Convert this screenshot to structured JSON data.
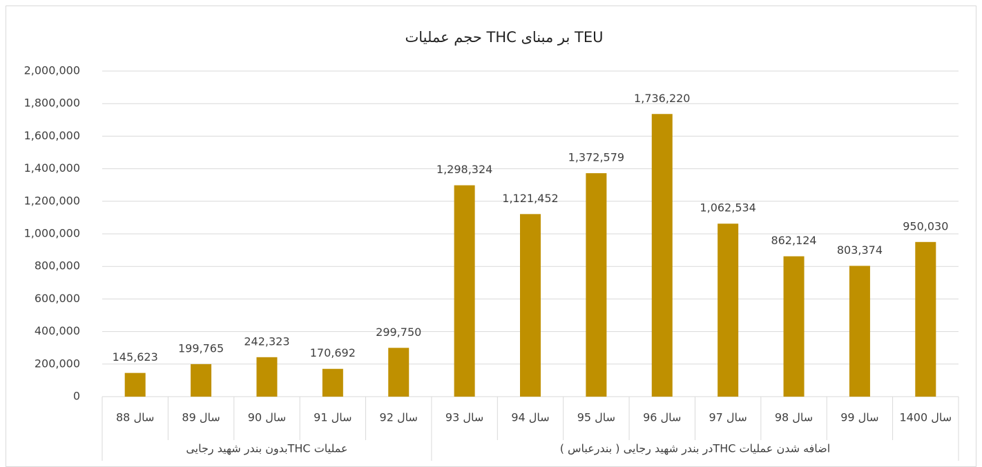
{
  "chart_data": {
    "type": "bar",
    "title": "حجم عملیات THC بر مبنای TEU",
    "color": "#bf9000",
    "groups": [
      {
        "name": "عملیات  THCبدون بندر شهید رجایی",
        "categories": [
          "سال 88",
          "سال 89",
          "سال 90",
          "سال 91",
          "سال 92"
        ],
        "values": [
          145623,
          199765,
          242323,
          170692,
          299750
        ],
        "value_labels": [
          "145,623",
          "199,765",
          "242,323",
          "170,692",
          "299,750"
        ]
      },
      {
        "name": "اضافه شدن عملیات  THCدر بندر شهید رجایی ( بندرعباس )",
        "categories": [
          "سال 93",
          "سال 94",
          "سال 95",
          "سال 96",
          "سال 97",
          "سال 98",
          "سال 99",
          "سال 1400"
        ],
        "values": [
          1298324,
          1121452,
          1372579,
          1736220,
          1062534,
          862124,
          803374,
          950030
        ],
        "value_labels": [
          "1,298,324",
          "1,121,452",
          "1,372,579",
          "1,736,220",
          "1,062,534",
          "862,124",
          "803,374",
          "950,030"
        ]
      }
    ],
    "ylim": [
      0,
      2000000
    ],
    "yticks": [
      0,
      {
        "value": 200000,
        "label": "200,000"
      },
      {
        "value": 400000,
        "label": "400,000"
      },
      {
        "value": 600000,
        "label": "600,000"
      },
      {
        "value": 800000,
        "label": "800,000"
      },
      {
        "value": 1000000,
        "label": "1,000,000"
      },
      {
        "value": 1200000,
        "label": "1,200,000"
      },
      {
        "value": 1400000,
        "label": "1,400,000"
      },
      {
        "value": 1600000,
        "label": "1,600,000"
      },
      {
        "value": 1800000,
        "label": "1,800,000"
      },
      {
        "value": 2000000,
        "label": "2,000,000"
      }
    ],
    "grid": true
  }
}
